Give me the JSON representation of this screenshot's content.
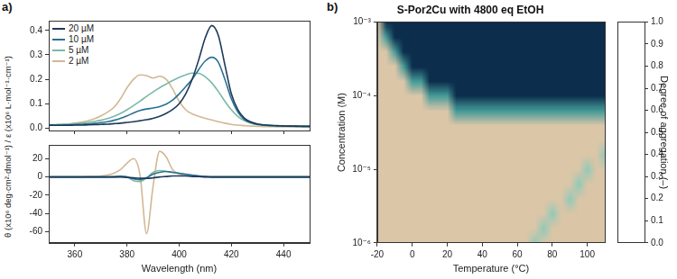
{
  "chart_data": [
    {
      "panel": "a)",
      "type": "line",
      "ylabel": "θ (x10⁶ deg·cm²·dmol⁻¹) / ε (x10⁶ L·mol⁻¹·cm⁻¹)",
      "x": [
        350,
        352.5,
        355,
        357.5,
        360,
        362.5,
        365,
        367.5,
        370,
        372.5,
        375,
        377.5,
        380,
        382.5,
        385,
        387.5,
        390,
        392.5,
        395,
        397.5,
        400,
        402.5,
        405,
        407.5,
        410,
        412.5,
        415,
        417.5,
        420,
        422.5,
        425,
        427.5,
        430,
        432.5,
        435,
        437.5,
        440,
        442.5,
        445,
        447.5,
        450
      ],
      "series": [
        {
          "name": "20 µM",
          "color": "#1c3a5a",
          "values": [
            0.012,
            0.011,
            0.011,
            0.011,
            0.012,
            0.012,
            0.013,
            0.014,
            0.015,
            0.016,
            0.018,
            0.02,
            0.023,
            0.026,
            0.03,
            0.034,
            0.04,
            0.048,
            0.06,
            0.076,
            0.1,
            0.14,
            0.2,
            0.28,
            0.37,
            0.42,
            0.38,
            0.26,
            0.14,
            0.075,
            0.04,
            0.025,
            0.017,
            0.013,
            0.011,
            0.01,
            0.009,
            0.008,
            0.008,
            0.007,
            0.007
          ]
        },
        {
          "name": "10 µM",
          "color": "#2b7092",
          "values": [
            0.012,
            0.012,
            0.012,
            0.013,
            0.014,
            0.015,
            0.017,
            0.019,
            0.022,
            0.026,
            0.032,
            0.04,
            0.05,
            0.062,
            0.072,
            0.078,
            0.082,
            0.088,
            0.098,
            0.115,
            0.14,
            0.17,
            0.2,
            0.24,
            0.275,
            0.29,
            0.27,
            0.2,
            0.12,
            0.065,
            0.035,
            0.022,
            0.015,
            0.012,
            0.01,
            0.009,
            0.008,
            0.008,
            0.007,
            0.007,
            0.007
          ]
        },
        {
          "name": "5 µM",
          "color": "#7ab8a8",
          "values": [
            0.014,
            0.014,
            0.015,
            0.016,
            0.018,
            0.02,
            0.023,
            0.027,
            0.032,
            0.039,
            0.048,
            0.06,
            0.075,
            0.092,
            0.11,
            0.13,
            0.148,
            0.165,
            0.18,
            0.195,
            0.208,
            0.218,
            0.225,
            0.224,
            0.21,
            0.185,
            0.15,
            0.11,
            0.075,
            0.048,
            0.03,
            0.02,
            0.014,
            0.011,
            0.009,
            0.008,
            0.008,
            0.007,
            0.007,
            0.007,
            0.006
          ]
        },
        {
          "name": "2 µM",
          "color": "#d2b894",
          "values": [
            0.012,
            0.013,
            0.015,
            0.017,
            0.02,
            0.024,
            0.03,
            0.038,
            0.05,
            0.065,
            0.085,
            0.12,
            0.165,
            0.2,
            0.218,
            0.215,
            0.205,
            0.212,
            0.2,
            0.16,
            0.11,
            0.075,
            0.058,
            0.048,
            0.04,
            0.033,
            0.026,
            0.02,
            0.015,
            0.012,
            0.01,
            0.008,
            0.007,
            0.006,
            0.006,
            0.005,
            0.005,
            0.005,
            0.005,
            0.005,
            0.005
          ]
        }
      ],
      "xlim": [
        350,
        450
      ],
      "xticks": [
        360,
        380,
        400,
        420,
        440
      ],
      "ylim": [
        -0.01,
        0.44
      ],
      "yticks": [
        {
          "value": 0,
          "label": "0.0"
        },
        {
          "value": 0.1,
          "label": "0.1"
        },
        {
          "value": 0.2,
          "label": "0.2"
        },
        {
          "value": 0.3,
          "label": "0.3"
        },
        {
          "value": 0.4,
          "label": "0.4"
        }
      ],
      "legend": "upper left",
      "tick_labels": "y"
    },
    {
      "type": "line",
      "xlabel": "Wavelength (nm)",
      "x": [
        350,
        352.5,
        355,
        357.5,
        360,
        362.5,
        365,
        367.5,
        370,
        372.5,
        375,
        377.5,
        380,
        382.5,
        385,
        387.5,
        390,
        392.5,
        395,
        397.5,
        400,
        402.5,
        405,
        407.5,
        410,
        412.5,
        415,
        417.5,
        420,
        422.5,
        425,
        427.5,
        430,
        432.5,
        435,
        437.5,
        440,
        442.5,
        445,
        447.5,
        450
      ],
      "series": [
        {
          "color": "#1c3a5a",
          "values": [
            0,
            0,
            0,
            0,
            0,
            0,
            0,
            0,
            0,
            0,
            0,
            0,
            -0.5,
            -1,
            -1.5,
            -1.5,
            -1,
            0,
            0.5,
            1,
            1,
            1,
            0.5,
            0.5,
            0,
            0,
            0,
            0,
            0,
            0,
            0,
            0,
            0,
            0,
            0,
            0,
            0,
            0,
            0,
            0,
            0
          ]
        },
        {
          "color": "#2b7092",
          "values": [
            0,
            0,
            0,
            0,
            0,
            0,
            0,
            0,
            0,
            0,
            0,
            0.5,
            0,
            -2,
            -3,
            -1,
            3,
            5,
            6,
            5,
            4,
            3,
            2,
            1,
            0.5,
            0,
            0,
            0,
            0,
            0,
            0,
            0,
            0,
            0,
            0,
            0,
            0,
            0,
            0,
            0,
            0
          ]
        },
        {
          "color": "#7ab8a8",
          "values": [
            0,
            0,
            0,
            0,
            0,
            0,
            0,
            0,
            0,
            0,
            0.5,
            1,
            0,
            -4,
            -5,
            -1,
            5,
            7,
            6,
            5,
            4,
            2.5,
            1.5,
            1,
            0.5,
            0,
            0,
            0,
            0,
            0,
            0,
            0,
            0,
            0,
            0,
            0,
            0,
            0,
            0,
            0,
            0
          ]
        },
        {
          "color": "#d2b894",
          "values": [
            0,
            0,
            0,
            0,
            0,
            0,
            0.5,
            0.5,
            1,
            2,
            4,
            8,
            15,
            20,
            2,
            -62,
            -10,
            28,
            22,
            8,
            3,
            1.5,
            1,
            0.5,
            0,
            0,
            0,
            0,
            0,
            0,
            0,
            0,
            0,
            0,
            0,
            0,
            0,
            0,
            0,
            0,
            0
          ]
        }
      ],
      "xlim": [
        350,
        450
      ],
      "xticks": [
        360,
        380,
        400,
        420,
        440
      ],
      "ylim": [
        -72,
        35
      ],
      "yticks": [
        -60,
        -40,
        -20,
        0,
        20
      ]
    },
    {
      "panel": "b)",
      "type": "heatmap",
      "title": "S-Por2Cu with 4800 eq EtOH",
      "xlabel": "Temperature (°C)",
      "ylabel": "Concentration (M)",
      "log": "y",
      "x": [
        -20,
        -15,
        -10,
        -5,
        0,
        5,
        10,
        15,
        20,
        25,
        30,
        35,
        40,
        45,
        50,
        55,
        60,
        65,
        70,
        75,
        80,
        85,
        90,
        95,
        100,
        105,
        110
      ],
      "y": [
        1e-06,
        1.585e-06,
        2.512e-06,
        3.981e-06,
        6.31e-06,
        1e-05,
        1.585e-05,
        2.512e-05,
        3.981e-05,
        6.31e-05,
        0.0001,
        0.0001585,
        0.0002512,
        0.0003981,
        0.000631,
        0.001
      ],
      "z": [
        [
          1,
          1,
          1,
          1,
          1,
          1,
          1,
          1,
          1,
          1,
          1,
          1,
          1,
          1,
          1,
          1,
          1,
          1,
          0.45,
          0.95,
          0.95,
          0.95,
          0.95,
          0.95,
          0.95,
          0.95,
          0.95
        ],
        [
          1,
          1,
          1,
          1,
          1,
          1,
          1,
          1,
          1,
          1,
          1,
          1,
          1,
          1,
          1,
          1,
          1,
          1,
          1,
          0.45,
          0.95,
          0.95,
          0.95,
          0.95,
          0.95,
          0.95,
          0.95
        ],
        [
          1,
          1,
          1,
          1,
          1,
          1,
          1,
          1,
          1,
          1,
          1,
          1,
          1,
          1,
          1,
          1,
          1,
          1,
          1,
          1,
          0.45,
          0.95,
          0.95,
          0.95,
          0.95,
          0.95,
          0.95
        ],
        [
          1,
          1,
          1,
          1,
          1,
          1,
          1,
          1,
          1,
          1,
          1,
          1,
          1,
          1,
          1,
          1,
          1,
          1,
          1,
          1,
          1,
          1,
          0.45,
          0.95,
          0.95,
          0.95,
          0.95
        ],
        [
          1,
          1,
          1,
          1,
          1,
          1,
          1,
          1,
          1,
          1,
          1,
          1,
          1,
          1,
          1,
          1,
          1,
          1,
          1,
          1,
          1,
          1,
          1,
          0.45,
          0.95,
          0.95,
          0.95
        ],
        [
          1,
          1,
          1,
          1,
          1,
          1,
          1,
          1,
          1,
          1,
          1,
          1,
          1,
          1,
          1,
          1,
          1,
          1,
          1,
          1,
          1,
          1,
          1,
          1,
          0.45,
          0.95,
          0.95
        ],
        [
          1,
          1,
          1,
          1,
          1,
          1,
          1,
          1,
          1,
          1,
          1,
          1,
          1,
          1,
          1,
          1,
          1,
          1,
          1,
          1,
          1,
          1,
          1,
          1,
          1,
          1,
          0.45
        ],
        [
          1,
          1,
          1,
          1,
          1,
          1,
          1,
          1,
          1,
          1,
          1,
          1,
          1,
          1,
          1,
          1,
          1,
          1,
          1,
          1,
          1,
          1,
          1,
          1,
          1,
          1,
          1
        ],
        [
          1,
          1,
          1,
          1,
          1,
          1,
          1,
          1,
          1,
          1,
          1,
          1,
          1,
          1,
          1,
          1,
          1,
          1,
          1,
          1,
          1,
          1,
          1,
          1,
          1,
          1,
          1
        ],
        [
          1,
          1,
          1,
          1,
          1,
          1,
          1,
          1,
          1,
          0.35,
          0.35,
          0.35,
          0.35,
          0.35,
          0.35,
          0.35,
          0.35,
          0.35,
          0.35,
          0.35,
          0.35,
          0.35,
          0.35,
          0.35,
          0.35,
          0.35,
          0.35
        ],
        [
          1,
          1,
          1,
          1,
          1,
          1,
          0.35,
          0.35,
          0.35,
          0,
          0,
          0,
          0,
          0,
          0,
          0,
          0,
          0,
          0,
          0,
          0,
          0,
          0,
          0,
          0,
          0,
          0
        ],
        [
          1,
          1,
          1,
          1,
          0.35,
          0.35,
          0,
          0,
          0,
          0,
          0,
          0,
          0,
          0,
          0,
          0,
          0,
          0,
          0,
          0,
          0,
          0,
          0,
          0,
          0,
          0,
          0
        ],
        [
          1,
          1,
          1,
          0.35,
          0,
          0,
          0,
          0,
          0,
          0,
          0,
          0,
          0,
          0,
          0,
          0,
          0,
          0,
          0,
          0,
          0,
          0,
          0,
          0,
          0,
          0,
          0
        ],
        [
          1,
          1,
          0.35,
          0,
          0,
          0,
          0,
          0,
          0,
          0,
          0,
          0,
          0,
          0,
          0,
          0,
          0,
          0,
          0,
          0,
          0,
          0,
          0,
          0,
          0,
          0,
          0
        ],
        [
          1,
          0.35,
          0,
          0,
          0,
          0,
          0,
          0,
          0,
          0,
          0,
          0,
          0,
          0,
          0,
          0,
          0,
          0,
          0,
          0,
          0,
          0,
          0,
          0,
          0,
          0,
          0
        ],
        [
          1,
          0,
          0,
          0,
          0,
          0,
          0,
          0,
          0,
          0,
          0,
          0,
          0,
          0,
          0,
          0,
          0,
          0,
          0,
          0,
          0,
          0,
          0,
          0,
          0,
          0,
          0
        ]
      ],
      "xlim": [
        -20,
        110
      ],
      "xticks": [
        -20,
        0,
        20,
        40,
        60,
        80,
        100
      ],
      "ylim": [
        1e-06,
        0.001
      ],
      "yticks": [
        {
          "value": 1e-06,
          "label": "10⁻⁶"
        },
        {
          "value": 1e-05,
          "label": "10⁻⁵"
        },
        {
          "value": 0.0001,
          "label": "10⁻⁴"
        },
        {
          "value": 0.001,
          "label": "10⁻³"
        }
      ],
      "colorbar": {
        "label": "Degree of aggregation (–)",
        "lim": [
          0,
          1
        ],
        "ticks": [
          {
            "value": 0,
            "label": "0.0"
          },
          {
            "value": 0.1,
            "label": "0.1"
          },
          {
            "value": 0.2,
            "label": "0.2"
          },
          {
            "value": 0.3,
            "label": "0.3"
          },
          {
            "value": 0.4,
            "label": "0.4"
          },
          {
            "value": 0.5,
            "label": "0.5"
          },
          {
            "value": 0.6,
            "label": "0.6"
          },
          {
            "value": 0.7,
            "label": "0.7"
          },
          {
            "value": 0.8,
            "label": "0.8"
          },
          {
            "value": 0.9,
            "label": "0.9"
          },
          {
            "value": 1,
            "label": "1.0"
          }
        ]
      }
    }
  ]
}
